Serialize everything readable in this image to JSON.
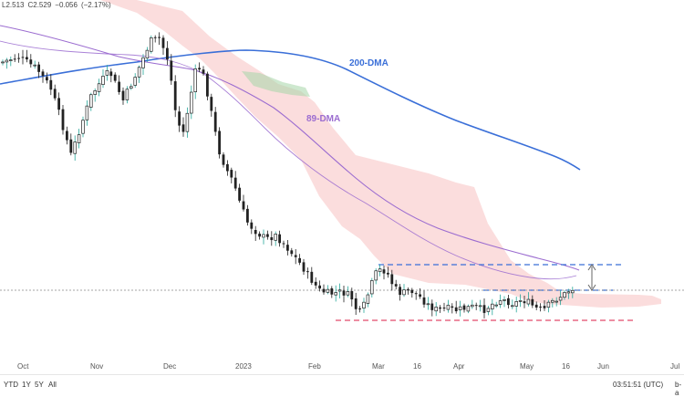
{
  "header": {
    "ohlc_values": [
      "L2.513",
      "C2.529",
      "−0.056",
      "(−2.17%)"
    ]
  },
  "chart_data": {
    "type": "candlestick",
    "x_tick_labels": [
      "Oct",
      "Nov",
      "Dec",
      "2023",
      "Feb",
      "Mar",
      "16",
      "Apr",
      "May",
      "16",
      "Jun",
      "Jul"
    ],
    "annotations": [
      "200-DMA",
      "89-DMA"
    ],
    "last_close": 2.529,
    "colors": {
      "up": "#26a69a",
      "down": "#222222",
      "dma200": "#3a6fd8",
      "dma89": "#9b6cd0",
      "cloud_bearish": "#f6b3b3",
      "cloud_bullish": "#a5d6a7",
      "resistance_lines": "#3a6fd8",
      "support_line": "#e24a6a"
    },
    "grid": false,
    "y_axis_labels": "hidden"
  },
  "bottom_bar": {
    "timeframes": [
      "YTD",
      "1Y",
      "5Y",
      "All"
    ],
    "clock": "03:51:51 (UTC)",
    "scale_mode": "b-a"
  }
}
